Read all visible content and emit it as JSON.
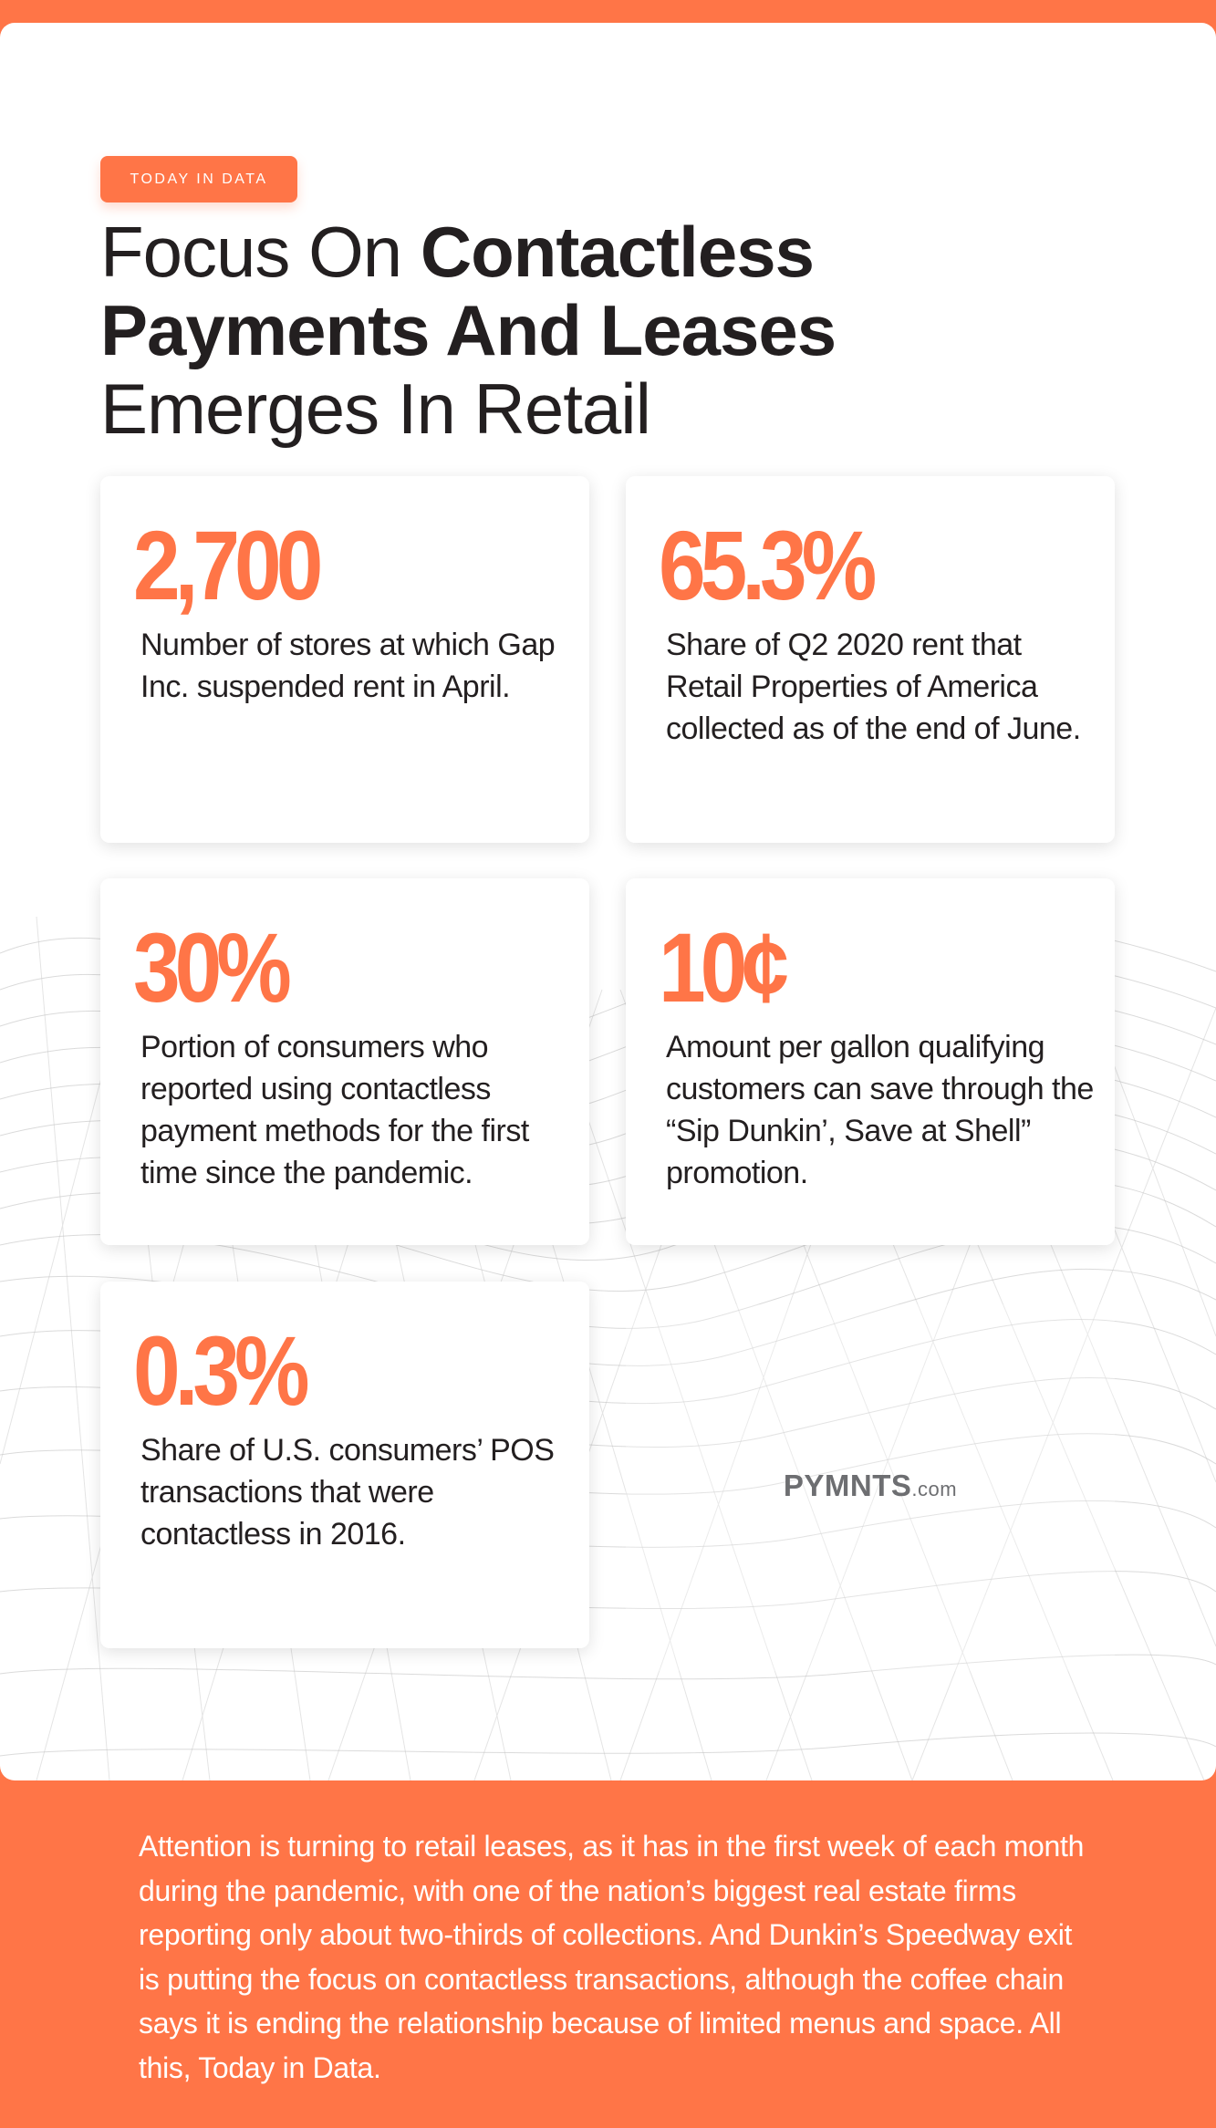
{
  "header": {
    "badge": "TODAY IN DATA",
    "title_line1_light": "Focus On ",
    "title_line1_bold": "Contactless",
    "title_line2_bold": "Payments And Leases",
    "title_line3_light": "Emerges In Retail"
  },
  "cards": [
    {
      "stat": "2,700",
      "desc": "Number of stores at which Gap Inc. suspended rent in April."
    },
    {
      "stat": "65.3%",
      "desc": "Share of Q2 2020 rent that Retail Properties of America  collected as of the end of June."
    },
    {
      "stat": "30%",
      "desc": "Portion of consumers who reported using contactless payment methods for the first time since the pandemic."
    },
    {
      "stat": "10¢",
      "desc": "Amount per gallon qualifying customers can save through the “Sip Dunkin’, Save at Shell” promotion."
    },
    {
      "stat": "0.3%",
      "desc": "Share of U.S. consumers’ POS transactions that were contactless in 2016."
    }
  ],
  "logo": {
    "brand": "PYMNTS",
    "suffix": ".com"
  },
  "footer": {
    "text": "Attention is turning to retail leases, as it has in the first week of each month during the pandemic, with one of the nation’s biggest real estate firms reporting only about two-thirds of collections. And Dunkin’s Speedway exit is putting the focus on contactless transactions, although the coffee chain says it is ending the relationship because of limited menus and space. All this, Today in Data."
  },
  "colors": {
    "accent": "#ff7547",
    "text": "#231f20",
    "mesh": "#b5b5b5"
  }
}
